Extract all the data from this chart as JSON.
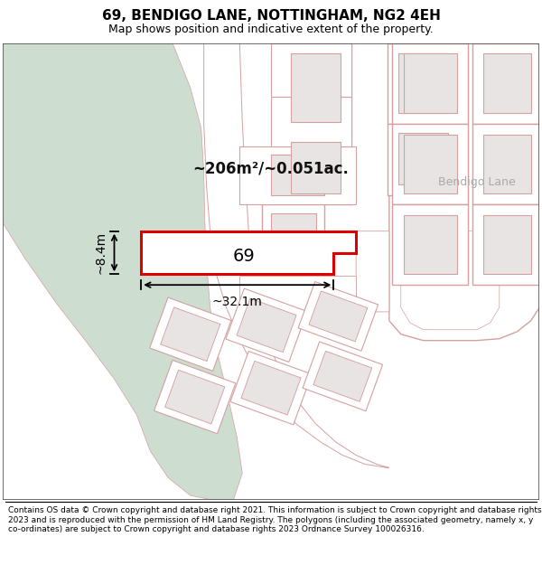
{
  "title": "69, BENDIGO LANE, NOTTINGHAM, NG2 4EH",
  "subtitle": "Map shows position and indicative extent of the property.",
  "footer": "Contains OS data © Crown copyright and database right 2021. This information is subject to Crown copyright and database rights 2023 and is reproduced with the permission of HM Land Registry. The polygons (including the associated geometry, namely x, y co-ordinates) are subject to Crown copyright and database rights 2023 Ordnance Survey 100026316.",
  "area_label": "~206m²/~0.051ac.",
  "width_label": "~32.1m",
  "height_label": "~8.4m",
  "plot_number": "69",
  "bg_color": "#ffffff",
  "map_bg": "#ffffff",
  "green_color": "#cdddd0",
  "plot_fill": "#ffffff",
  "plot_outline": "#dd0000",
  "bldg_fill": "#e8e4e4",
  "bldg_outline": "#d4a0a0",
  "lot_outline": "#d4a0a0",
  "road_gray": "#cccccc",
  "street_label_color": "#aaaaaa",
  "title_fontsize": 11,
  "subtitle_fontsize": 9,
  "footer_fontsize": 6.5,
  "annotation_color": "#111111"
}
